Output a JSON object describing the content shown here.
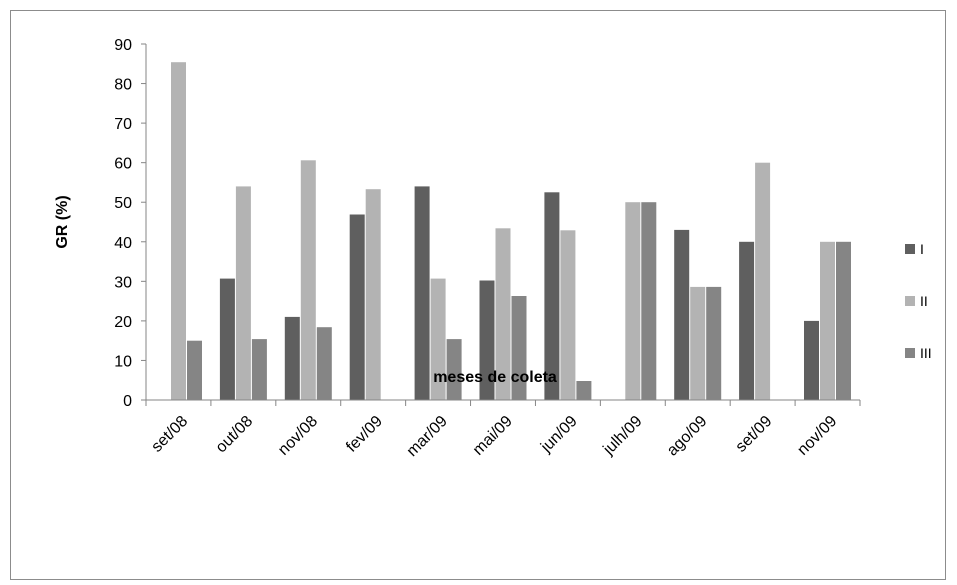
{
  "chart_data": {
    "type": "bar",
    "xlabel": "meses de coleta",
    "ylabel": "GR (%)",
    "ylim": [
      0,
      90
    ],
    "yticks": [
      0,
      10,
      20,
      30,
      40,
      50,
      60,
      70,
      80,
      90
    ],
    "grid": false,
    "legend_position": "right",
    "categories": [
      "set/08",
      "out/08",
      "nov/08",
      "fev/09",
      "mar/09",
      "mai/09",
      "jun/09",
      "julh/09",
      "ago/09",
      "set/09",
      "nov/09"
    ],
    "series": [
      {
        "name": "I",
        "color": "#5f5f5f",
        "values": [
          0,
          30.7,
          21,
          46.9,
          54,
          30.2,
          52.5,
          0,
          43,
          40,
          20
        ]
      },
      {
        "name": "II",
        "color": "#b3b3b3",
        "values": [
          85.4,
          54,
          60.6,
          53.3,
          30.7,
          43.4,
          42.9,
          50,
          28.6,
          60,
          40
        ]
      },
      {
        "name": "III",
        "color": "#858585",
        "values": [
          15,
          15.4,
          18.4,
          0,
          15.4,
          26.3,
          4.8,
          50,
          28.6,
          0,
          40
        ]
      }
    ]
  }
}
